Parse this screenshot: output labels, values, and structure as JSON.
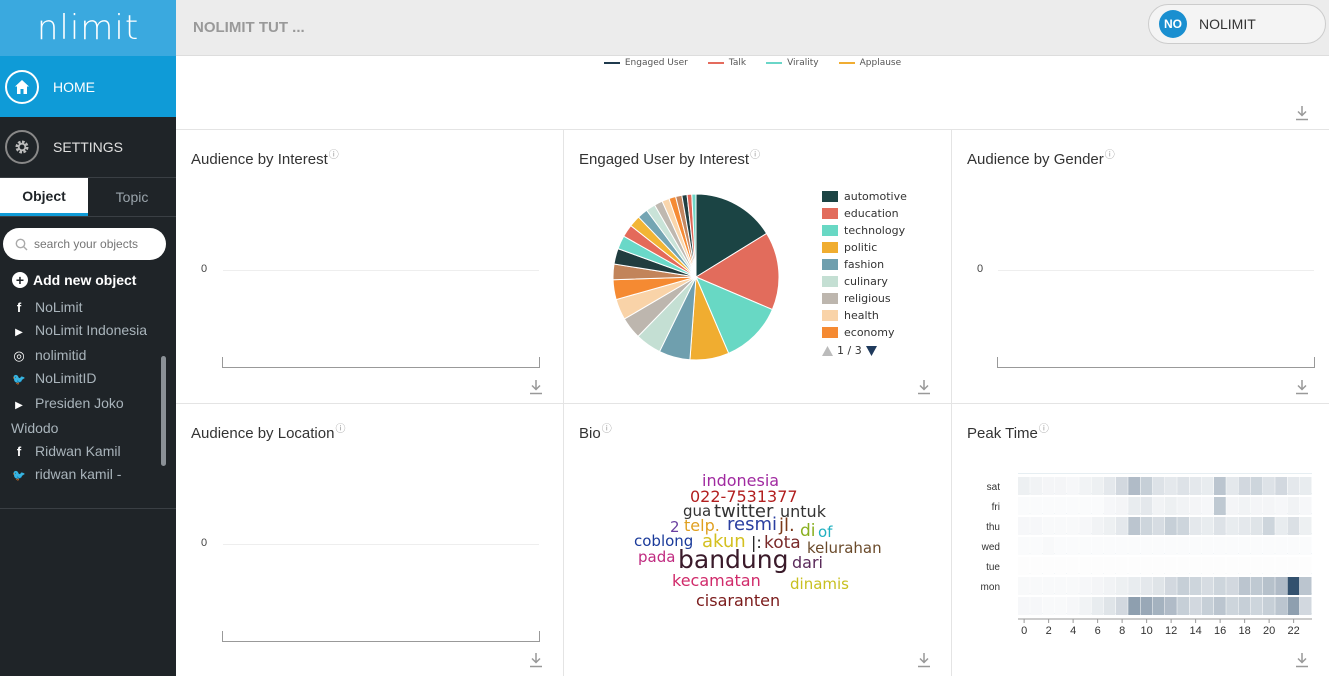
{
  "app": {
    "logo": "nlimit"
  },
  "sidebar": {
    "nav": [
      {
        "label": "HOME",
        "icon": "home-icon"
      },
      {
        "label": "SETTINGS",
        "icon": "gear-icon"
      }
    ],
    "tabs": [
      {
        "label": "Object"
      },
      {
        "label": "Topic"
      }
    ],
    "search_placeholder": "search your objects",
    "add_new_label": "Add new object",
    "objects": [
      {
        "icon": "facebook-icon",
        "glyph": "f",
        "label": "NoLimit"
      },
      {
        "icon": "youtube-icon",
        "glyph": "▶",
        "label": "NoLimit Indonesia"
      },
      {
        "icon": "instagram-icon",
        "glyph": "◎",
        "label": "nolimitid"
      },
      {
        "icon": "twitter-icon",
        "glyph": "🐦",
        "label": "NoLimitID"
      },
      {
        "icon": "youtube-icon",
        "glyph": "▶",
        "label": "Presiden Joko Widodo"
      },
      {
        "icon": "facebook-icon",
        "glyph": "f",
        "label": "Ridwan Kamil"
      },
      {
        "icon": "twitter-icon",
        "glyph": "🐦",
        "label": "ridwan kamil - keyword"
      }
    ]
  },
  "header": {
    "title": "NOLIMIT TUT ...",
    "user": {
      "initials": "NO",
      "name": "NOLIMIT"
    }
  },
  "top_legend": [
    {
      "label": "Engaged User",
      "color": "#1f3a4d"
    },
    {
      "label": "Talk",
      "color": "#e46b5d"
    },
    {
      "label": "Virality",
      "color": "#6ad6c8"
    },
    {
      "label": "Applause",
      "color": "#f0ad32"
    }
  ],
  "panels": {
    "audience_interest": {
      "title": "Audience by Interest",
      "zero": "0"
    },
    "engaged_interest": {
      "title": "Engaged User by Interest",
      "pager": "1 / 3"
    },
    "audience_gender": {
      "title": "Audience by Gender",
      "zero": "0"
    },
    "audience_location": {
      "title": "Audience by Location",
      "zero": "0"
    },
    "bio": {
      "title": "Bio"
    },
    "peak_time": {
      "title": "Peak Time"
    }
  },
  "chart_data": [
    {
      "type": "pie",
      "title": "Engaged User by Interest",
      "legend": [
        "automotive",
        "education",
        "technology",
        "politic",
        "fashion",
        "culinary",
        "religious",
        "health",
        "economy"
      ],
      "slices": [
        {
          "name": "automotive",
          "value": 16,
          "color": "#1b4444"
        },
        {
          "name": "education",
          "value": 15,
          "color": "#e26c5c"
        },
        {
          "name": "technology",
          "value": 12,
          "color": "#68d8c4"
        },
        {
          "name": "politic",
          "value": 7.5,
          "color": "#f0ad30"
        },
        {
          "name": "fashion",
          "value": 6,
          "color": "#6f9fae"
        },
        {
          "name": "culinary",
          "value": 5,
          "color": "#c4dfd3"
        },
        {
          "name": "religious",
          "value": 4.2,
          "color": "#bdb6ae"
        },
        {
          "name": "health",
          "value": 4,
          "color": "#f9d3a8"
        },
        {
          "name": "economy",
          "value": 3.8,
          "color": "#f58a32"
        },
        {
          "name": "",
          "value": 3,
          "color": "#c2845a"
        },
        {
          "name": "",
          "value": 3,
          "color": "#213d3f"
        },
        {
          "name": "",
          "value": 2.6,
          "color": "#6ad8c8"
        },
        {
          "name": "",
          "value": 2.4,
          "color": "#e46a5a"
        },
        {
          "name": "",
          "value": 2.2,
          "color": "#f2b535"
        },
        {
          "name": "",
          "value": 2,
          "color": "#74a5b3"
        },
        {
          "name": "",
          "value": 1.8,
          "color": "#c9e3d8"
        },
        {
          "name": "",
          "value": 1.6,
          "color": "#bfb8b0"
        },
        {
          "name": "",
          "value": 1.4,
          "color": "#f9d6ad"
        },
        {
          "name": "",
          "value": 1.3,
          "color": "#f58b35"
        },
        {
          "name": "",
          "value": 1.2,
          "color": "#c48760"
        },
        {
          "name": "",
          "value": 1,
          "color": "#223f41"
        },
        {
          "name": "",
          "value": 0.9,
          "color": "#e06555"
        },
        {
          "name": "",
          "value": 0.8,
          "color": "#70d6c6"
        }
      ]
    },
    {
      "type": "wordcloud",
      "title": "Bio",
      "words": [
        {
          "text": "indonesia",
          "color": "#a02aa0"
        },
        {
          "text": "022-7531377",
          "color": "#b21f1f"
        },
        {
          "text": "gua",
          "color": "#333333"
        },
        {
          "text": "twitter",
          "color": "#333333"
        },
        {
          "text": "untuk",
          "color": "#333333"
        },
        {
          "text": "2",
          "color": "#6a3fa0"
        },
        {
          "text": "telp.",
          "color": "#e0a020"
        },
        {
          "text": "resmi",
          "color": "#2a3fa0"
        },
        {
          "text": "jl.",
          "color": "#7a3a1a"
        },
        {
          "text": "di",
          "color": "#8ab020"
        },
        {
          "text": "of",
          "color": "#20b0c0"
        },
        {
          "text": "coblong",
          "color": "#1a3a9a"
        },
        {
          "text": "akun",
          "color": "#d4c020"
        },
        {
          "text": "|:",
          "color": "#222222"
        },
        {
          "text": "kota",
          "color": "#7a2a2a"
        },
        {
          "text": "kelurahan",
          "color": "#6a4a2a"
        },
        {
          "text": "pada",
          "color": "#c02a80"
        },
        {
          "text": "bandung",
          "color": "#3a1a2a"
        },
        {
          "text": "dari",
          "color": "#5a2a5a"
        },
        {
          "text": "kecamatan",
          "color": "#d02a6a"
        },
        {
          "text": "dinamis",
          "color": "#c8c020"
        },
        {
          "text": "cisaranten",
          "color": "#7a1a1a"
        }
      ]
    },
    {
      "type": "heatmap",
      "title": "Peak Time",
      "y_labels": [
        "sat",
        "fri",
        "thu",
        "wed",
        "tue",
        "mon",
        ""
      ],
      "x_ticks": [
        0,
        2,
        4,
        6,
        8,
        10,
        12,
        14,
        16,
        18,
        20,
        22
      ],
      "values": [
        [
          0.08,
          0.06,
          0.05,
          0.05,
          0.04,
          0.06,
          0.08,
          0.12,
          0.2,
          0.35,
          0.25,
          0.15,
          0.12,
          0.15,
          0.12,
          0.1,
          0.3,
          0.12,
          0.2,
          0.22,
          0.15,
          0.2,
          0.12,
          0.1
        ],
        [
          0.02,
          0.02,
          0.02,
          0.02,
          0.02,
          0.02,
          0.02,
          0.04,
          0.05,
          0.1,
          0.12,
          0.06,
          0.08,
          0.06,
          0.05,
          0.04,
          0.28,
          0.05,
          0.06,
          0.05,
          0.05,
          0.04,
          0.06,
          0.04
        ],
        [
          0.04,
          0.04,
          0.03,
          0.03,
          0.03,
          0.04,
          0.06,
          0.08,
          0.12,
          0.3,
          0.22,
          0.18,
          0.25,
          0.22,
          0.12,
          0.1,
          0.15,
          0.1,
          0.12,
          0.14,
          0.22,
          0.1,
          0.16,
          0.08
        ],
        [
          0.02,
          0.02,
          0.03,
          0.02,
          0.02,
          0.02,
          0.02,
          0.02,
          0.02,
          0.02,
          0.02,
          0.02,
          0.02,
          0.02,
          0.02,
          0.02,
          0.02,
          0.02,
          0.02,
          0.02,
          0.02,
          0.02,
          0.02,
          0.02
        ],
        [
          0.01,
          0.01,
          0.01,
          0.01,
          0.01,
          0.01,
          0.01,
          0.01,
          0.01,
          0.01,
          0.01,
          0.01,
          0.01,
          0.01,
          0.01,
          0.01,
          0.01,
          0.01,
          0.01,
          0.01,
          0.01,
          0.01,
          0.01,
          0.01
        ],
        [
          0.03,
          0.03,
          0.03,
          0.03,
          0.03,
          0.04,
          0.05,
          0.06,
          0.08,
          0.1,
          0.12,
          0.14,
          0.2,
          0.25,
          0.22,
          0.18,
          0.22,
          0.2,
          0.3,
          0.28,
          0.32,
          0.35,
          0.9,
          0.3
        ],
        [
          0.04,
          0.04,
          0.03,
          0.03,
          0.04,
          0.06,
          0.1,
          0.14,
          0.2,
          0.5,
          0.45,
          0.4,
          0.35,
          0.25,
          0.2,
          0.25,
          0.3,
          0.22,
          0.25,
          0.22,
          0.25,
          0.3,
          0.5,
          0.2
        ]
      ]
    }
  ]
}
